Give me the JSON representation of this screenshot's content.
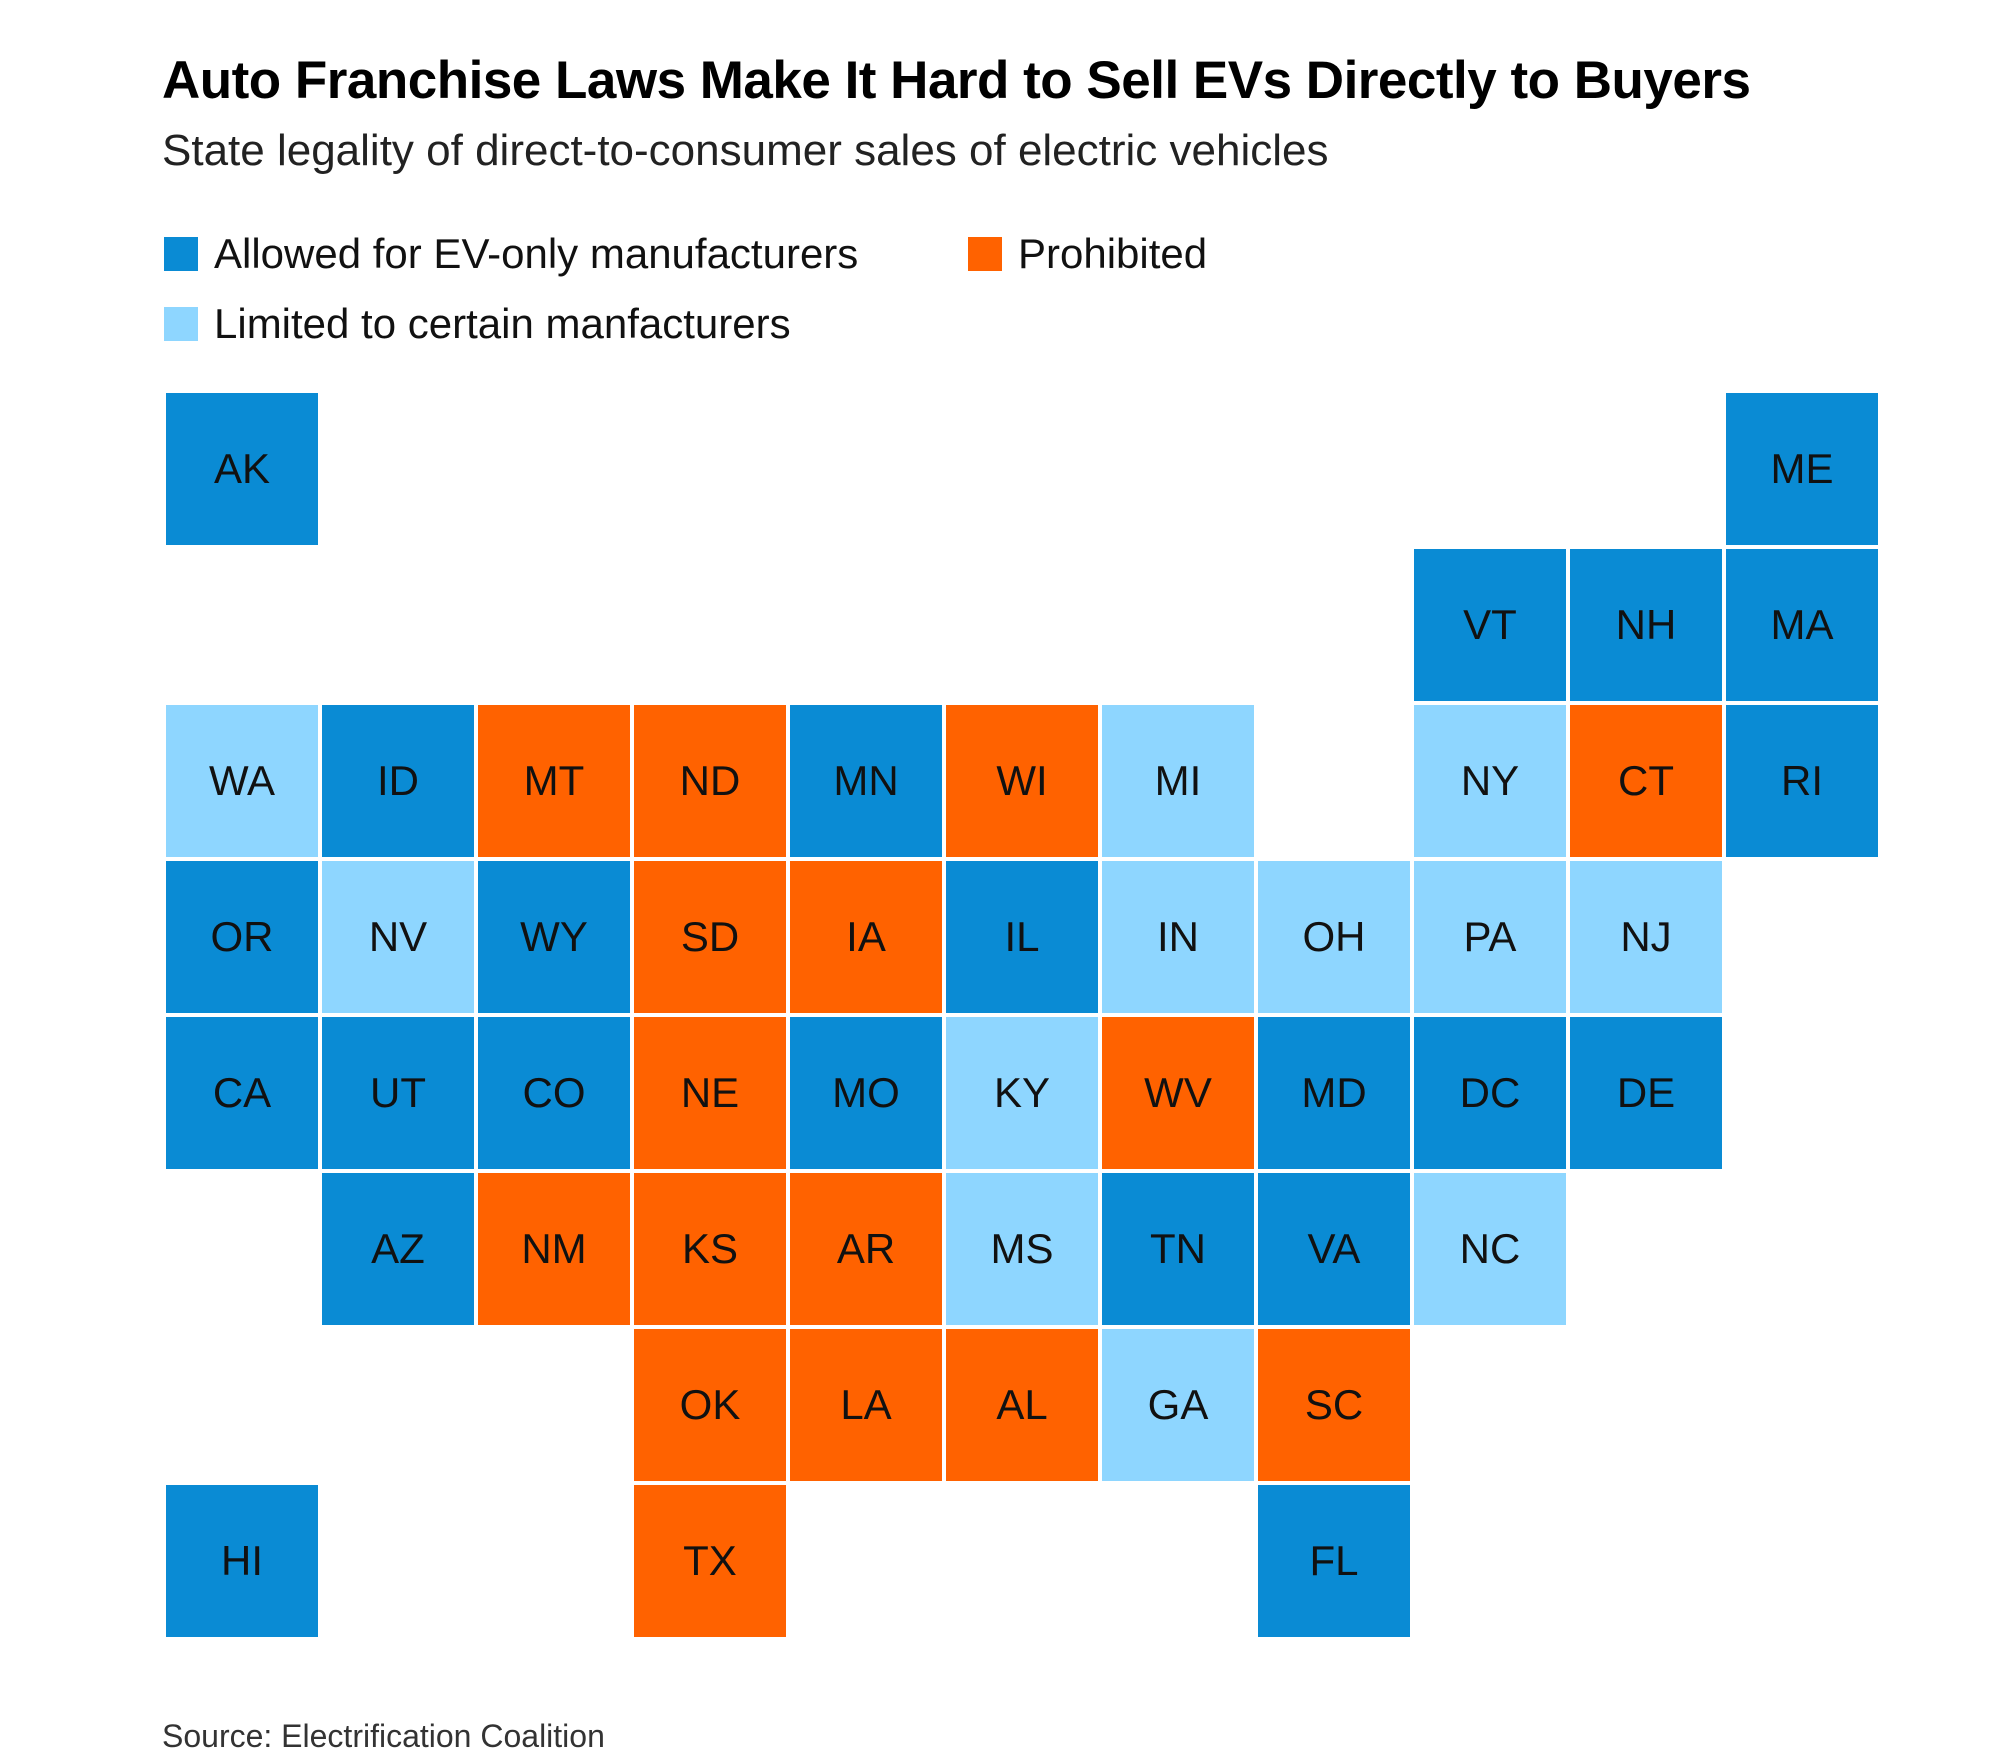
{
  "title": "Auto Franchise Laws Make It Hard to Sell EVs Directly to Buyers",
  "subtitle": "State legality of direct-to-consumer sales of electric vehicles",
  "source": "Source: Electrification Coalition",
  "colors": {
    "allowed": "#0a8bd4",
    "prohibited": "#ff6200",
    "limited": "#8ed6ff"
  },
  "legend": [
    {
      "key": "allowed",
      "label": "Allowed for EV-only manufacturers"
    },
    {
      "key": "prohibited",
      "label": "Prohibited"
    },
    {
      "key": "limited",
      "label": "Limited to certain manfacturers"
    }
  ],
  "states": [
    {
      "abbr": "AK",
      "status": "allowed"
    },
    {
      "abbr": "ME",
      "status": "allowed"
    },
    {
      "abbr": "VT",
      "status": "allowed"
    },
    {
      "abbr": "NH",
      "status": "allowed"
    },
    {
      "abbr": "MA",
      "status": "allowed"
    },
    {
      "abbr": "WA",
      "status": "limited"
    },
    {
      "abbr": "ID",
      "status": "allowed"
    },
    {
      "abbr": "MT",
      "status": "prohibited"
    },
    {
      "abbr": "ND",
      "status": "prohibited"
    },
    {
      "abbr": "MN",
      "status": "allowed"
    },
    {
      "abbr": "WI",
      "status": "prohibited"
    },
    {
      "abbr": "MI",
      "status": "limited"
    },
    {
      "abbr": "NY",
      "status": "limited"
    },
    {
      "abbr": "CT",
      "status": "prohibited"
    },
    {
      "abbr": "RI",
      "status": "allowed"
    },
    {
      "abbr": "OR",
      "status": "allowed"
    },
    {
      "abbr": "NV",
      "status": "limited"
    },
    {
      "abbr": "WY",
      "status": "allowed"
    },
    {
      "abbr": "SD",
      "status": "prohibited"
    },
    {
      "abbr": "IA",
      "status": "prohibited"
    },
    {
      "abbr": "IL",
      "status": "allowed"
    },
    {
      "abbr": "IN",
      "status": "limited"
    },
    {
      "abbr": "OH",
      "status": "limited"
    },
    {
      "abbr": "PA",
      "status": "limited"
    },
    {
      "abbr": "NJ",
      "status": "limited"
    },
    {
      "abbr": "CA",
      "status": "allowed"
    },
    {
      "abbr": "UT",
      "status": "allowed"
    },
    {
      "abbr": "CO",
      "status": "allowed"
    },
    {
      "abbr": "NE",
      "status": "prohibited"
    },
    {
      "abbr": "MO",
      "status": "allowed"
    },
    {
      "abbr": "KY",
      "status": "limited"
    },
    {
      "abbr": "WV",
      "status": "prohibited"
    },
    {
      "abbr": "MD",
      "status": "allowed"
    },
    {
      "abbr": "DC",
      "status": "allowed"
    },
    {
      "abbr": "DE",
      "status": "allowed"
    },
    {
      "abbr": "AZ",
      "status": "allowed"
    },
    {
      "abbr": "NM",
      "status": "prohibited"
    },
    {
      "abbr": "KS",
      "status": "prohibited"
    },
    {
      "abbr": "AR",
      "status": "prohibited"
    },
    {
      "abbr": "MS",
      "status": "limited"
    },
    {
      "abbr": "TN",
      "status": "allowed"
    },
    {
      "abbr": "VA",
      "status": "allowed"
    },
    {
      "abbr": "NC",
      "status": "limited"
    },
    {
      "abbr": "OK",
      "status": "prohibited"
    },
    {
      "abbr": "LA",
      "status": "prohibited"
    },
    {
      "abbr": "AL",
      "status": "prohibited"
    },
    {
      "abbr": "GA",
      "status": "limited"
    },
    {
      "abbr": "SC",
      "status": "prohibited"
    },
    {
      "abbr": "HI",
      "status": "allowed"
    },
    {
      "abbr": "TX",
      "status": "prohibited"
    },
    {
      "abbr": "FL",
      "status": "allowed"
    }
  ]
}
